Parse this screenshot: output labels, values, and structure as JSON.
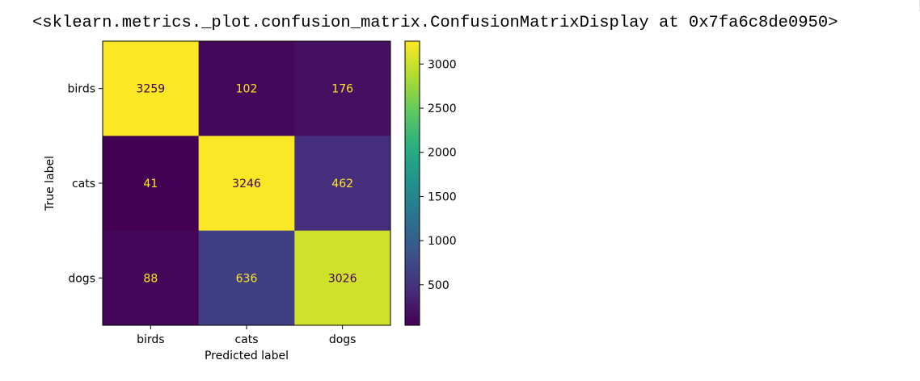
{
  "output_repr": "<sklearn.metrics._plot.confusion_matrix.ConfusionMatrixDisplay at 0x7fa6c8de0950>",
  "chart_data": {
    "type": "heatmap",
    "xlabel": "Predicted label",
    "ylabel": "True label",
    "x_categories": [
      "birds",
      "cats",
      "dogs"
    ],
    "y_categories": [
      "birds",
      "cats",
      "dogs"
    ],
    "values": [
      [
        3259,
        102,
        176
      ],
      [
        41,
        3246,
        462
      ],
      [
        88,
        636,
        3026
      ]
    ],
    "colormap": "viridis",
    "colorbar": {
      "min": 41,
      "max": 3259,
      "ticks": [
        500,
        1000,
        1500,
        2000,
        2500,
        3000
      ]
    },
    "text_colors": {
      "low": "#fde725",
      "high": "#440154"
    }
  }
}
